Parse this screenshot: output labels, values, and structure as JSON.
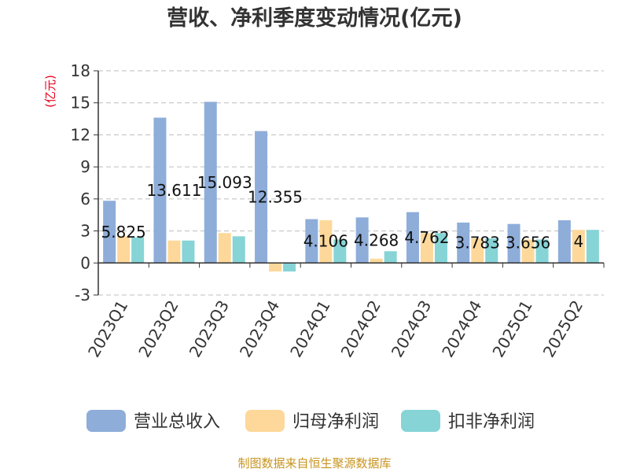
{
  "chart_data": {
    "type": "bar",
    "title": "营收、净利季度变动情况(亿元)",
    "ylabel": "(亿元)",
    "xlabel": "",
    "ylim": [
      -3,
      18
    ],
    "yticks": [
      -3,
      0,
      3,
      6,
      9,
      12,
      15,
      18
    ],
    "grid": true,
    "legend_position": "bottom",
    "categories": [
      "2023Q1",
      "2023Q2",
      "2023Q3",
      "2023Q4",
      "2024Q1",
      "2024Q2",
      "2024Q3",
      "2024Q4",
      "2025Q1",
      "2025Q2"
    ],
    "series": [
      {
        "name": "营业总收入",
        "color": "#8eadd9",
        "values": [
          5.825,
          13.611,
          15.093,
          12.355,
          4.106,
          4.268,
          4.762,
          3.783,
          3.656,
          4.0
        ]
      },
      {
        "name": "归母净利润",
        "color": "#fdd89a",
        "values": [
          2.5,
          2.1,
          2.8,
          -0.8,
          4.0,
          0.4,
          2.8,
          2.3,
          2.2,
          3.1
        ]
      },
      {
        "name": "扣非净利润",
        "color": "#86d4d6",
        "values": [
          2.4,
          2.1,
          2.5,
          -0.8,
          2.2,
          1.1,
          2.8,
          2.3,
          2.2,
          3.1
        ]
      }
    ],
    "data_labels": [
      "5.825",
      "13.611",
      "15.093",
      "12.355",
      "4.106",
      "4.268",
      "4.762",
      "3.783",
      "3.656",
      "4"
    ],
    "label_series": "营业总收入"
  },
  "footer": {
    "source": "制图数据来自恒生聚源数据库"
  }
}
